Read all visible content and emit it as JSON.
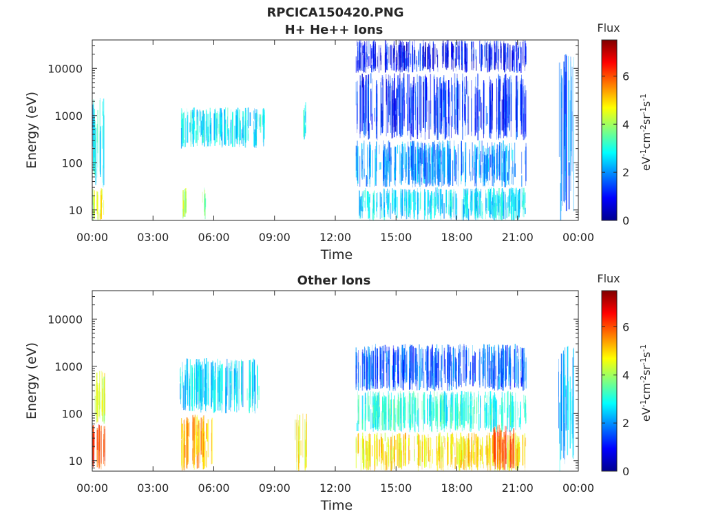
{
  "figure_title": "RPCICA150420.PNG",
  "chart_data": [
    {
      "type": "heatmap",
      "title": "H+ He++ Ions",
      "xlabel": "Time",
      "ylabel": "Energy (eV)",
      "xlim": [
        "00:00",
        "24:00"
      ],
      "x_tick_labels": [
        "00:00",
        "03:00",
        "06:00",
        "09:00",
        "12:00",
        "15:00",
        "18:00",
        "21:00",
        "00:00"
      ],
      "y_scale": "log",
      "ylim": [
        6,
        40000
      ],
      "y_ticks": [
        10,
        100,
        1000,
        10000
      ],
      "y_tick_labels": [
        "10",
        "100",
        "1000",
        "10000"
      ],
      "colorbar": {
        "title": "Flux",
        "label": "eV-1cm-2sr-1s-1",
        "range": [
          0,
          7.5
        ],
        "ticks": [
          0,
          2,
          4,
          6
        ],
        "tick_labels": [
          "0",
          "2",
          "4",
          "6"
        ],
        "colormap": "jet"
      },
      "flux_regions": [
        {
          "t_start_h": 0.0,
          "t_end_h": 0.55,
          "e_min_eV": 6,
          "e_max_eV": 30,
          "flux": 4.4
        },
        {
          "t_start_h": 0.0,
          "t_end_h": 0.6,
          "e_min_eV": 30,
          "e_max_eV": 2500,
          "flux": 2.8
        },
        {
          "t_start_h": 4.4,
          "t_end_h": 4.6,
          "e_min_eV": 6,
          "e_max_eV": 30,
          "flux": 4.2
        },
        {
          "t_start_h": 5.4,
          "t_end_h": 5.6,
          "e_min_eV": 6,
          "e_max_eV": 30,
          "flux": 3.8
        },
        {
          "t_start_h": 4.3,
          "t_end_h": 8.5,
          "e_min_eV": 200,
          "e_max_eV": 1500,
          "flux": 2.7
        },
        {
          "t_start_h": 10.4,
          "t_end_h": 10.55,
          "e_min_eV": 300,
          "e_max_eV": 2000,
          "flux": 2.8
        },
        {
          "t_start_h": 13.0,
          "t_end_h": 21.4,
          "e_min_eV": 6,
          "e_max_eV": 30,
          "flux": 2.6
        },
        {
          "t_start_h": 13.0,
          "t_end_h": 21.4,
          "e_min_eV": 30,
          "e_max_eV": 300,
          "flux": 2.0
        },
        {
          "t_start_h": 13.0,
          "t_end_h": 21.4,
          "e_min_eV": 300,
          "e_max_eV": 8000,
          "flux": 1.2
        },
        {
          "t_start_h": 13.0,
          "t_end_h": 21.4,
          "e_min_eV": 8000,
          "e_max_eV": 40000,
          "flux": 1.0
        },
        {
          "t_start_h": 23.0,
          "t_end_h": 23.8,
          "e_min_eV": 6,
          "e_max_eV": 20000,
          "flux": 1.8
        }
      ]
    },
    {
      "type": "heatmap",
      "title": "Other Ions",
      "xlabel": "Time",
      "ylabel": "Energy (eV)",
      "xlim": [
        "00:00",
        "24:00"
      ],
      "x_tick_labels": [
        "00:00",
        "03:00",
        "06:00",
        "09:00",
        "12:00",
        "15:00",
        "18:00",
        "21:00",
        "00:00"
      ],
      "y_scale": "log",
      "ylim": [
        6,
        40000
      ],
      "y_ticks": [
        10,
        100,
        1000,
        10000
      ],
      "y_tick_labels": [
        "10",
        "100",
        "1000",
        "10000"
      ],
      "colorbar": {
        "title": "Flux",
        "label": "eV-1cm-2sr-1s-1",
        "range": [
          0,
          7.5
        ],
        "ticks": [
          0,
          2,
          4,
          6
        ],
        "tick_labels": [
          "0",
          "2",
          "4",
          "6"
        ],
        "colormap": "jet"
      },
      "flux_regions": [
        {
          "t_start_h": 0.0,
          "t_end_h": 0.6,
          "e_min_eV": 6,
          "e_max_eV": 60,
          "flux": 6.2
        },
        {
          "t_start_h": 0.0,
          "t_end_h": 0.6,
          "e_min_eV": 60,
          "e_max_eV": 800,
          "flux": 4.5
        },
        {
          "t_start_h": 4.3,
          "t_end_h": 6.0,
          "e_min_eV": 6,
          "e_max_eV": 100,
          "flux": 5.2
        },
        {
          "t_start_h": 4.3,
          "t_end_h": 8.3,
          "e_min_eV": 100,
          "e_max_eV": 1500,
          "flux": 2.5
        },
        {
          "t_start_h": 10.0,
          "t_end_h": 10.6,
          "e_min_eV": 6,
          "e_max_eV": 100,
          "flux": 4.6
        },
        {
          "t_start_h": 13.0,
          "t_end_h": 21.4,
          "e_min_eV": 6,
          "e_max_eV": 40,
          "flux": 4.8
        },
        {
          "t_start_h": 13.0,
          "t_end_h": 21.4,
          "e_min_eV": 40,
          "e_max_eV": 300,
          "flux": 3.0
        },
        {
          "t_start_h": 13.0,
          "t_end_h": 21.4,
          "e_min_eV": 300,
          "e_max_eV": 3000,
          "flux": 1.6
        },
        {
          "t_start_h": 19.8,
          "t_end_h": 20.8,
          "e_min_eV": 6,
          "e_max_eV": 60,
          "flux": 6.0
        },
        {
          "t_start_h": 23.0,
          "t_end_h": 23.8,
          "e_min_eV": 6,
          "e_max_eV": 3000,
          "flux": 2.2
        }
      ]
    }
  ]
}
